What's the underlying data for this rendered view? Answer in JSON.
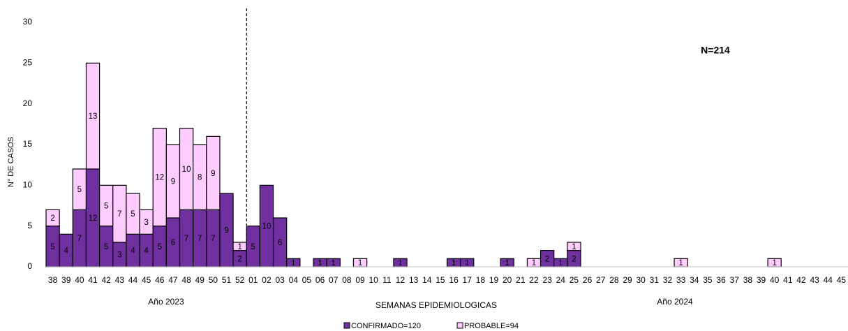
{
  "chart_data": {
    "type": "stacked_bar",
    "y_label": "N° DE CASOS",
    "x_label": "SEMANAS EPIDEMIOLOGICAS",
    "annotations": [
      "N=214",
      "Año 2023",
      "Año 2024"
    ],
    "categories": [
      "38",
      "39",
      "40",
      "41",
      "42",
      "43",
      "44",
      "45",
      "46",
      "47",
      "48",
      "49",
      "50",
      "51",
      "52",
      "01",
      "02",
      "03",
      "04",
      "05",
      "06",
      "07",
      "08",
      "09",
      "10",
      "11",
      "12",
      "13",
      "14",
      "15",
      "16",
      "17",
      "18",
      "19",
      "20",
      "21",
      "22",
      "23",
      "24",
      "25",
      "26",
      "27",
      "28",
      "29",
      "30",
      "31",
      "32",
      "33",
      "34",
      "35",
      "36",
      "37",
      "38",
      "39",
      "40",
      "41",
      "42",
      "43",
      "44",
      "45"
    ],
    "series": [
      {
        "name": "CONFIRMADO=120",
        "color": "#7030a0",
        "values": [
          5,
          4,
          7,
          12,
          5,
          3,
          4,
          4,
          5,
          6,
          7,
          7,
          7,
          9,
          2,
          5,
          10,
          6,
          1,
          0,
          1,
          1,
          0,
          0,
          0,
          0,
          1,
          0,
          0,
          0,
          1,
          1,
          0,
          0,
          1,
          0,
          0,
          2,
          1,
          2,
          0,
          0,
          0,
          0,
          0,
          0,
          0,
          0,
          0,
          0,
          0,
          0,
          0,
          0,
          0,
          0,
          0,
          0,
          0,
          0
        ]
      },
      {
        "name": "PROBABLE=94",
        "color": "#ffccff",
        "values": [
          2,
          0,
          5,
          13,
          5,
          7,
          5,
          3,
          12,
          9,
          10,
          8,
          9,
          0,
          1,
          0,
          0,
          0,
          0,
          0,
          0,
          0,
          0,
          1,
          0,
          0,
          0,
          0,
          0,
          0,
          0,
          0,
          0,
          0,
          0,
          0,
          1,
          0,
          0,
          1,
          0,
          0,
          0,
          0,
          0,
          0,
          0,
          1,
          0,
          0,
          0,
          0,
          0,
          0,
          1,
          0,
          0,
          0,
          0,
          0
        ]
      }
    ],
    "ylim": [
      0,
      30
    ],
    "yticks": [
      0,
      5,
      10,
      15,
      20,
      25,
      30
    ]
  }
}
